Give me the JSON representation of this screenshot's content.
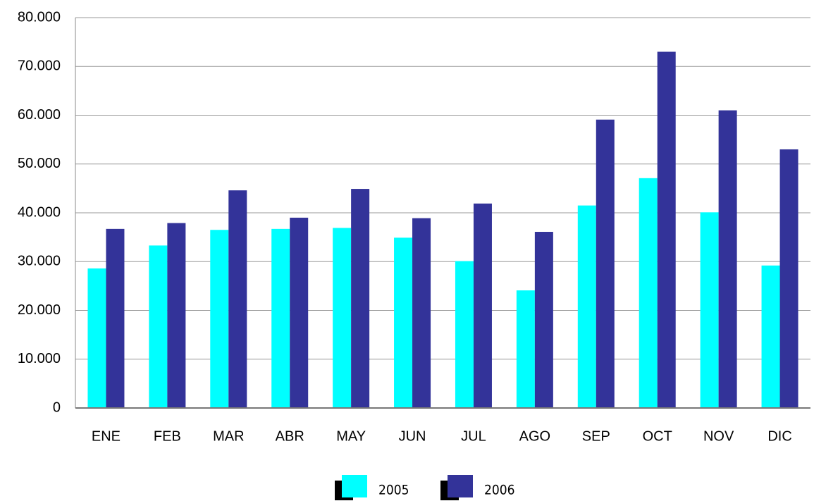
{
  "chart_data": {
    "type": "bar",
    "categories": [
      "ENE",
      "FEB",
      "MAR",
      "ABR",
      "MAY",
      "JUN",
      "JUL",
      "AGO",
      "SEP",
      "OCT",
      "NOV",
      "DIC"
    ],
    "series": [
      {
        "name": "2005",
        "color": "#00ffff",
        "values": [
          28600,
          33300,
          36500,
          36700,
          36900,
          34900,
          30100,
          24100,
          41500,
          47100,
          40100,
          29200
        ]
      },
      {
        "name": "2006",
        "color": "#333399",
        "values": [
          36700,
          37900,
          44600,
          39000,
          44900,
          38900,
          41900,
          36100,
          59100,
          73000,
          61000,
          53000
        ]
      }
    ],
    "ylim": [
      0,
      80000
    ],
    "yticks": [
      0,
      {
        "value": 10000,
        "label": "10.000"
      },
      {
        "value": 20000,
        "label": "20.000"
      },
      {
        "value": 30000,
        "label": "30.000"
      },
      {
        "value": 40000,
        "label": "40.000"
      },
      {
        "value": 50000,
        "label": "50.000"
      },
      {
        "value": 60000,
        "label": "60.000"
      },
      {
        "value": 70000,
        "label": "70.000"
      },
      {
        "value": 80000,
        "label": "80.000"
      }
    ],
    "grid": true,
    "legend": "bottom"
  }
}
